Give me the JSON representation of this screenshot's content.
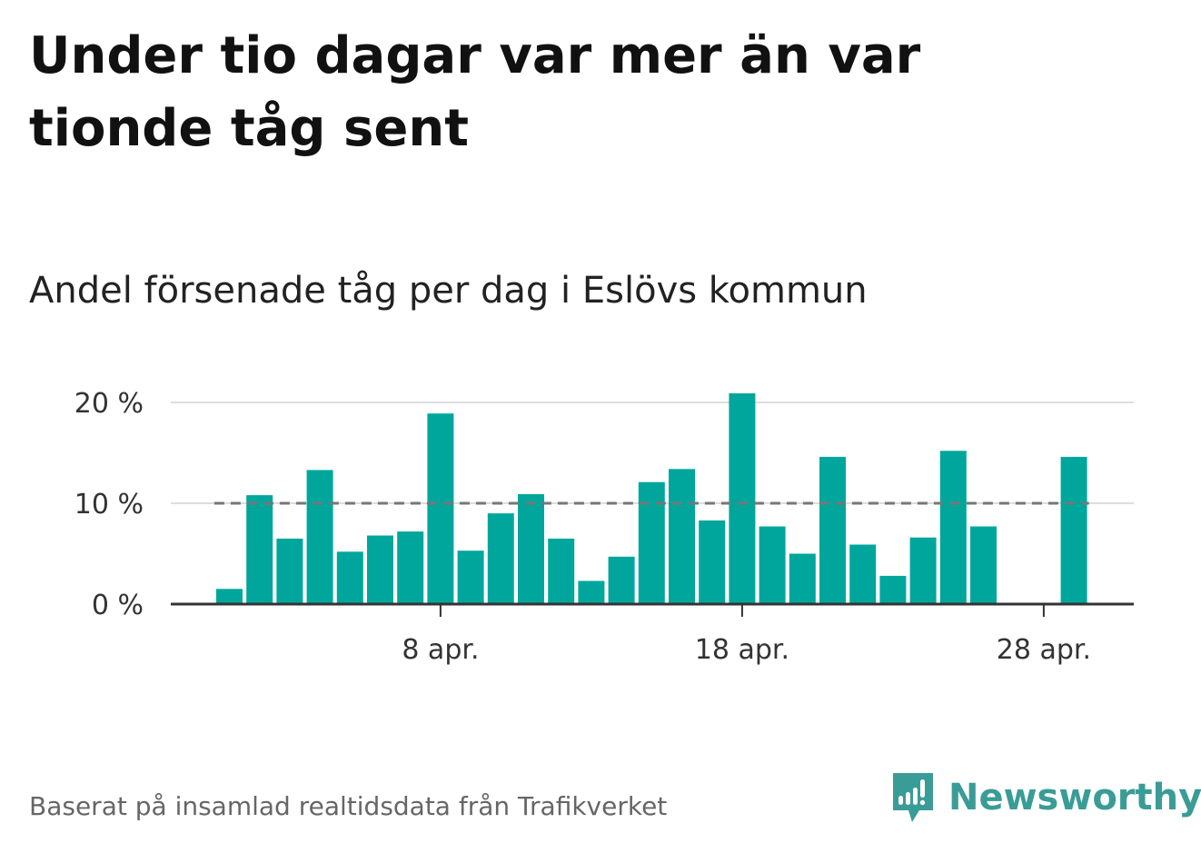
{
  "title": "Under tio dagar var mer än var tionde tåg sent",
  "subtitle": "Andel försenade tåg per dag i Eslövs kommun",
  "footer": "Baserat på insamlad realtidsdata från Trafikverket",
  "brand": {
    "name": "Newsworthy",
    "icon": "newsworthy-logo-icon",
    "color": "#3a9c96"
  },
  "colors": {
    "bar": "#00a69c",
    "threshold_line": "#777777",
    "gridline": "#dddddd",
    "axis": "#333333"
  },
  "chart_data": {
    "type": "bar",
    "x_start": "2024-04-01",
    "x": [
      "2024-04-01",
      "2024-04-02",
      "2024-04-03",
      "2024-04-04",
      "2024-04-05",
      "2024-04-06",
      "2024-04-07",
      "2024-04-08",
      "2024-04-09",
      "2024-04-10",
      "2024-04-11",
      "2024-04-12",
      "2024-04-13",
      "2024-04-14",
      "2024-04-15",
      "2024-04-16",
      "2024-04-17",
      "2024-04-18",
      "2024-04-19",
      "2024-04-20",
      "2024-04-21",
      "2024-04-22",
      "2024-04-23",
      "2024-04-24",
      "2024-04-25",
      "2024-04-26",
      "2024-04-27",
      "2024-04-28",
      "2024-04-29"
    ],
    "values": [
      1.5,
      10.8,
      6.5,
      13.3,
      5.2,
      6.8,
      7.2,
      18.9,
      5.3,
      9.0,
      10.9,
      6.5,
      2.3,
      4.7,
      12.1,
      13.4,
      8.3,
      20.9,
      7.7,
      5.0,
      14.6,
      5.9,
      2.8,
      6.6,
      15.2,
      7.7,
      0,
      0,
      14.6
    ],
    "unit": "%",
    "ylim": [
      0,
      21
    ],
    "yticks": [
      {
        "value": 0,
        "label": "0 %"
      },
      {
        "value": 10,
        "label": "10 %"
      },
      {
        "value": 20,
        "label": "20 %"
      }
    ],
    "xticks": [
      {
        "date": "2024-04-08",
        "label": "8 apr."
      },
      {
        "date": "2024-04-18",
        "label": "18 apr."
      },
      {
        "date": "2024-04-28",
        "label": "28 apr."
      }
    ],
    "reference_line": {
      "value": 10,
      "style": "dashed"
    },
    "grid": true,
    "legend": "none"
  }
}
